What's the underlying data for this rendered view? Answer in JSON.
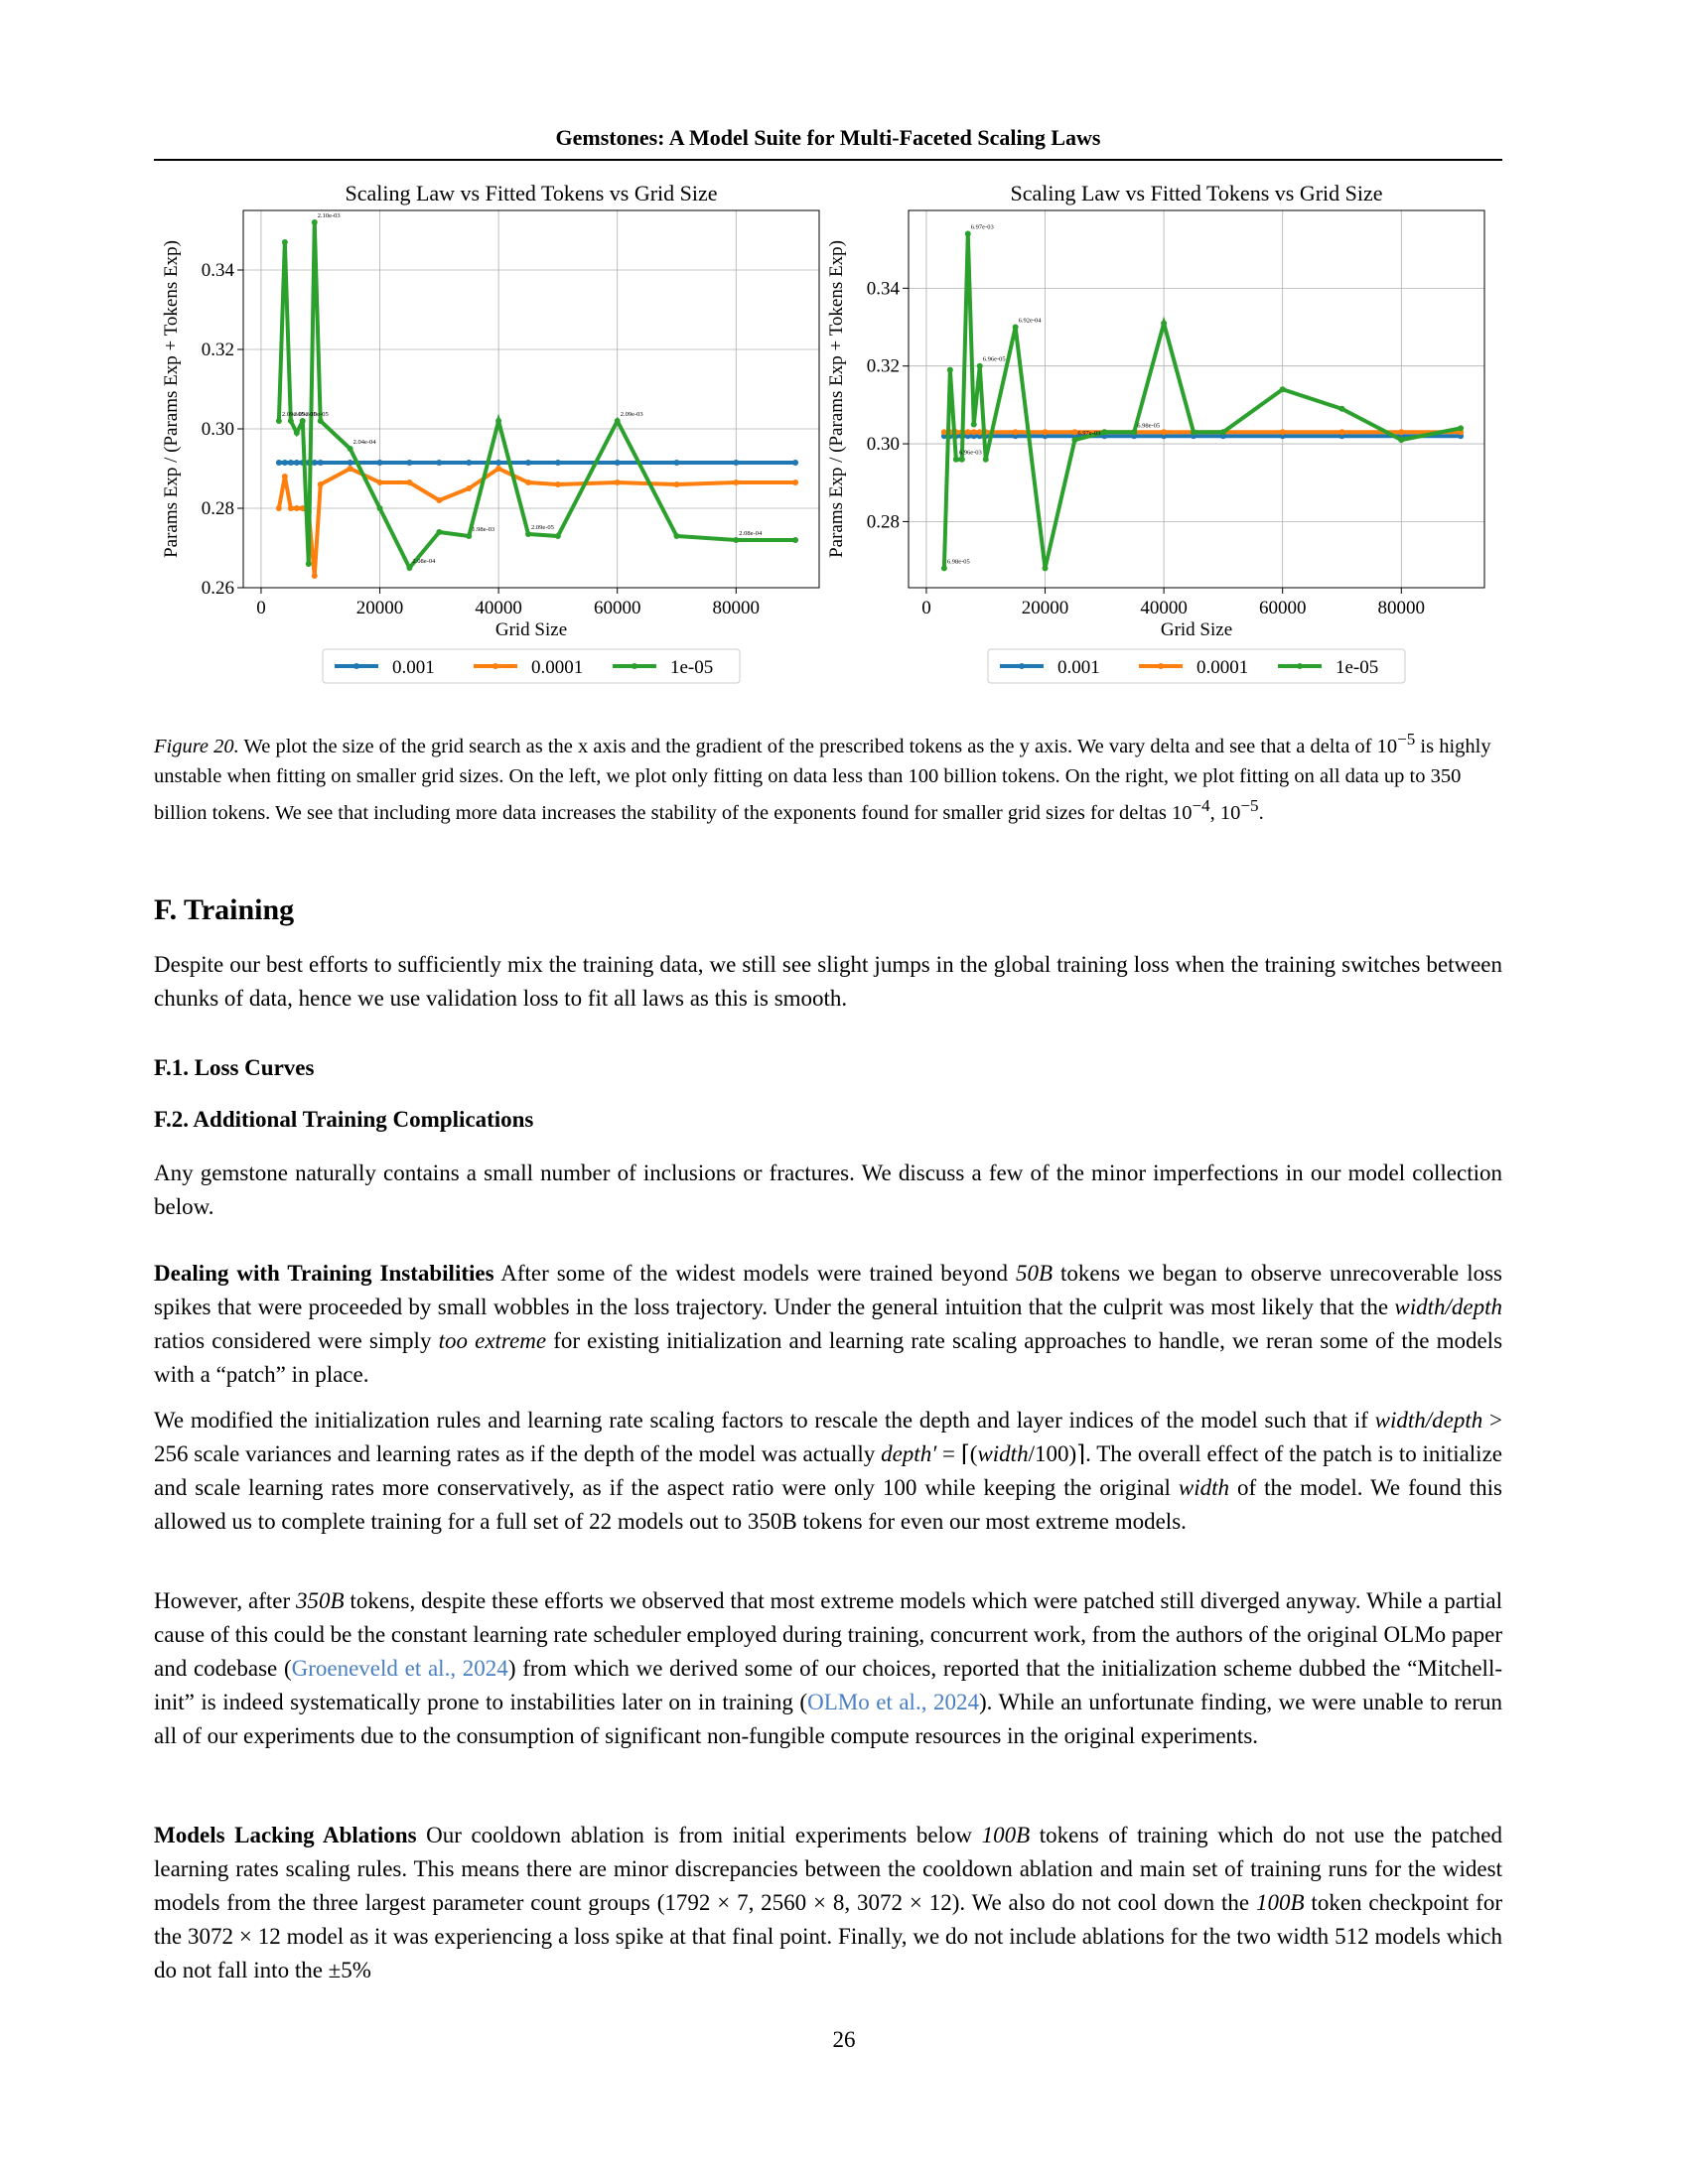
{
  "header": "Gemstones: A Model Suite for Multi-Faceted Scaling Laws",
  "charts_common": {
    "title": "Scaling Law vs Fitted Tokens vs Grid Size",
    "xlabel": "Grid Size",
    "ylabel": "Params Exp / (Params Exp + Tokens Exp)",
    "x_ticks": [
      "0",
      "20000",
      "40000",
      "60000",
      "80000"
    ],
    "legend": [
      "0.001",
      "0.0001",
      "1e-05"
    ],
    "colors": {
      "0.001": "#1f77b4",
      "0.0001": "#ff7f0e",
      "1e-05": "#2ca02c"
    }
  },
  "chart_data": [
    {
      "type": "line",
      "title": "Scaling Law vs Fitted Tokens vs Grid Size",
      "xlabel": "Grid Size",
      "ylabel": "Params Exp / (Params Exp + Tokens Exp)",
      "xlim": [
        -3000,
        94000
      ],
      "ylim": [
        0.26,
        0.355
      ],
      "yticks": [
        0.26,
        0.28,
        0.3,
        0.32,
        0.34
      ],
      "grid": true,
      "legend_position": "below",
      "series": [
        {
          "name": "0.001",
          "x": [
            3000,
            4000,
            5000,
            6000,
            7000,
            8000,
            9000,
            10000,
            15000,
            20000,
            25000,
            30000,
            35000,
            40000,
            45000,
            50000,
            60000,
            70000,
            80000,
            90000
          ],
          "y": [
            0.2915,
            0.2915,
            0.2915,
            0.2915,
            0.2915,
            0.2915,
            0.2915,
            0.2915,
            0.2915,
            0.2915,
            0.2915,
            0.2915,
            0.2915,
            0.2915,
            0.2915,
            0.2915,
            0.2915,
            0.2915,
            0.2915,
            0.2915
          ]
        },
        {
          "name": "0.0001",
          "x": [
            3000,
            4000,
            5000,
            6000,
            7000,
            8000,
            9000,
            10000,
            15000,
            20000,
            25000,
            30000,
            35000,
            40000,
            45000,
            50000,
            60000,
            70000,
            80000,
            90000
          ],
          "y": [
            0.28,
            0.288,
            0.28,
            0.28,
            0.28,
            0.279,
            0.263,
            0.286,
            0.29,
            0.2865,
            0.2865,
            0.282,
            0.285,
            0.29,
            0.2865,
            0.286,
            0.2865,
            0.286,
            0.2865,
            0.2865
          ]
        },
        {
          "name": "1e-05",
          "x": [
            3000,
            4000,
            5000,
            6000,
            7000,
            8000,
            9000,
            10000,
            15000,
            20000,
            25000,
            30000,
            35000,
            40000,
            45000,
            50000,
            60000,
            70000,
            80000,
            90000
          ],
          "y": [
            0.302,
            0.347,
            0.302,
            0.299,
            0.302,
            0.266,
            0.352,
            0.302,
            0.295,
            0.28,
            0.265,
            0.274,
            0.273,
            0.302,
            0.2735,
            0.273,
            0.302,
            0.273,
            0.272,
            0.272
          ]
        }
      ],
      "point_labels": [
        "2.09e-05",
        "2.09e-05",
        "2.10e-05",
        "2.10e-03",
        "2.04e-04",
        "2.08e-04",
        "1.98e-03",
        "2.09e-05",
        "2.09e-03",
        "2.08e-04"
      ]
    },
    {
      "type": "line",
      "title": "Scaling Law vs Fitted Tokens vs Grid Size",
      "xlabel": "Grid Size",
      "ylabel": "Params Exp / (Params Exp + Tokens Exp)",
      "xlim": [
        -3000,
        94000
      ],
      "ylim": [
        0.263,
        0.36
      ],
      "yticks": [
        0.28,
        0.3,
        0.32,
        0.34
      ],
      "grid": true,
      "legend_position": "below",
      "series": [
        {
          "name": "0.001",
          "x": [
            3000,
            4000,
            5000,
            6000,
            7000,
            8000,
            9000,
            10000,
            15000,
            20000,
            25000,
            30000,
            35000,
            40000,
            45000,
            50000,
            60000,
            70000,
            80000,
            90000
          ],
          "y": [
            0.302,
            0.302,
            0.302,
            0.302,
            0.302,
            0.302,
            0.302,
            0.302,
            0.302,
            0.302,
            0.302,
            0.302,
            0.302,
            0.302,
            0.302,
            0.302,
            0.302,
            0.302,
            0.302,
            0.302
          ]
        },
        {
          "name": "0.0001",
          "x": [
            3000,
            4000,
            5000,
            6000,
            7000,
            8000,
            9000,
            10000,
            15000,
            20000,
            25000,
            30000,
            35000,
            40000,
            45000,
            50000,
            60000,
            70000,
            80000,
            90000
          ],
          "y": [
            0.303,
            0.303,
            0.303,
            0.303,
            0.303,
            0.303,
            0.303,
            0.303,
            0.303,
            0.303,
            0.303,
            0.303,
            0.303,
            0.303,
            0.303,
            0.303,
            0.303,
            0.303,
            0.303,
            0.303
          ]
        },
        {
          "name": "1e-05",
          "x": [
            3000,
            4000,
            5000,
            6000,
            7000,
            8000,
            9000,
            10000,
            15000,
            20000,
            25000,
            30000,
            35000,
            40000,
            45000,
            50000,
            60000,
            70000,
            80000,
            90000
          ],
          "y": [
            0.268,
            0.319,
            0.296,
            0.296,
            0.354,
            0.305,
            0.32,
            0.296,
            0.33,
            0.268,
            0.301,
            0.303,
            0.303,
            0.331,
            0.303,
            0.303,
            0.314,
            0.309,
            0.301,
            0.304
          ]
        }
      ],
      "point_labels": [
        "6.98e-05",
        "6.96e-03",
        "6.97e-03",
        "6.96e-05",
        "6.92e-04",
        "6.97e-03",
        "6.98e-05"
      ]
    }
  ],
  "caption": {
    "label": "Figure 20.",
    "p1": " We plot the size of the grid search as the x axis and the gradient of the prescribed tokens as the y axis. We vary delta and see that a delta of ",
    "m1": "10",
    "m1sup": "−5",
    "p2": " is highly unstable when fitting on smaller grid sizes. On the left, we plot only fitting on data less than ",
    "m2": "100",
    "p3": " billion tokens. On the right, we plot fitting on all data up to ",
    "m3": "350",
    "p4": " billion tokens. We see that including more data increases the stability of the exponents found for smaller grid sizes for deltas ",
    "m4": "10",
    "m4sup": "−4",
    "m5": ", 10",
    "m5sup": "−5",
    "p5": "."
  },
  "section_f": "F. Training",
  "para_f": "Despite our best efforts to sufficiently mix the training data, we still see slight jumps in the global training loss when the training switches between chunks of data, hence we use validation loss to fit all laws as this is smooth.",
  "sub_f1": "F.1. Loss Curves",
  "sub_f2": "F.2. Additional Training Complications",
  "para_f2": "Any gemstone naturally contains a small number of inclusions or fractures. We discuss a few of the minor imperfections in our model collection below.",
  "instab": {
    "lead": "Dealing with Training Instabilities",
    "t1": "   After some of the widest models were trained beyond ",
    "m1": "50B",
    "t2": " tokens we began to observe unrecoverable loss spikes that were proceeded by small wobbles in the loss trajectory. Under the general intuition that the culprit was most likely that the ",
    "m2": "width/depth",
    "t3": " ratios considered were simply ",
    "em": "too extreme",
    "t4": " for existing initialization and learning rate scaling approaches to handle, we reran some of the models with a “patch” in place."
  },
  "modified": {
    "t1": "We modified the initialization rules and learning rate scaling factors to rescale the depth and layer indices of the model such that if ",
    "m1": "width/depth",
    "m1b": " > 256",
    "t2": " scale variances and learning rates as if the depth of the model was actually ",
    "m2": "depth′",
    "m2b": " = ⌈(",
    "m2c": "width",
    "m2d": "/100)⌉",
    "t3": ". The overall effect of the patch is to initialize and scale learning rates more conservatively, as if the aspect ratio were only ",
    "m3": "100",
    "t4": " while keeping the original ",
    "m4": "width",
    "t5": " of the model. We found this allowed us to complete training for a full set of 22 models out to 350B tokens for even our most extreme models."
  },
  "however": {
    "t1": "However, after ",
    "m1": "350B",
    "t2": " tokens, despite these efforts we observed that most extreme models which were patched still diverged anyway. While a partial cause of this could be the constant learning rate scheduler employed during training, concurrent work, from the authors of the original OLMo paper and codebase (",
    "c1": "Groeneveld et al., 2024",
    "t3": ") from which we derived some of our choices, reported that the initialization scheme dubbed the “Mitchell-init” is indeed systematically prone to instabilities later on in training (",
    "c2": "OLMo et al., 2024",
    "t4": "). While an unfortunate finding, we were unable to rerun all of our experiments due to the consumption of significant non-fungible compute resources in the original experiments."
  },
  "lacking": {
    "lead": "Models Lacking Ablations",
    "t1": "   Our cooldown ablation is from initial experiments below ",
    "m1": "100B",
    "t2": " tokens of training which do not use the patched learning rates scaling rules. This means there are minor discrepancies between the cooldown ablation and main set of training runs for the widest models from the three largest parameter count groups (",
    "m2": "1792 × 7, 2560 × 8, 3072 × 12",
    "t3": "). We also do not cool down the ",
    "m3": "100B",
    "t4": " token checkpoint for the ",
    "m4": "3072 × 12",
    "t5": " model as it was experiencing a loss spike at that final point. Finally, we do not include ablations for the two width ",
    "m5": "512",
    "t6": " models which do not fall into the ",
    "m6": "±5%"
  },
  "page_number": "26"
}
